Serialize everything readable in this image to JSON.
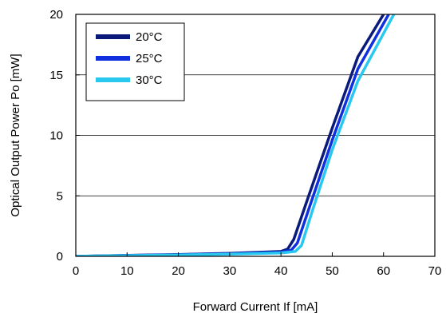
{
  "chart_data": {
    "type": "line",
    "title": "",
    "xlabel": "Forward Current If [mA]",
    "ylabel": "Optical Output Power  Po [mW]",
    "xlim": [
      0,
      70
    ],
    "ylim": [
      0,
      20
    ],
    "xticks": [
      0,
      10,
      20,
      30,
      40,
      50,
      60,
      70
    ],
    "yticks": [
      0,
      5,
      10,
      15,
      20
    ],
    "grid": "horizontal",
    "legend_position": "top-left",
    "series": [
      {
        "name": "20°C",
        "color": "#0a1a7a",
        "points": [
          [
            0,
            0
          ],
          [
            10,
            0.08
          ],
          [
            20,
            0.15
          ],
          [
            30,
            0.25
          ],
          [
            40,
            0.4
          ],
          [
            41.3,
            0.6
          ],
          [
            42.5,
            1.4
          ],
          [
            45,
            4.5
          ],
          [
            50,
            10.6
          ],
          [
            55,
            16.5
          ],
          [
            60,
            20
          ]
        ]
      },
      {
        "name": "25°C",
        "color": "#1030e0",
        "points": [
          [
            0,
            0
          ],
          [
            10,
            0.07
          ],
          [
            20,
            0.13
          ],
          [
            30,
            0.22
          ],
          [
            40,
            0.35
          ],
          [
            42,
            0.5
          ],
          [
            43.2,
            1.1
          ],
          [
            45.5,
            4.0
          ],
          [
            50,
            9.6
          ],
          [
            55,
            15.5
          ],
          [
            61,
            20
          ]
        ]
      },
      {
        "name": "30°C",
        "color": "#28c8f0",
        "points": [
          [
            0,
            0
          ],
          [
            10,
            0.06
          ],
          [
            20,
            0.11
          ],
          [
            30,
            0.18
          ],
          [
            40,
            0.28
          ],
          [
            42.8,
            0.4
          ],
          [
            44,
            0.9
          ],
          [
            46,
            3.6
          ],
          [
            50,
            8.8
          ],
          [
            55,
            14.5
          ],
          [
            62,
            20
          ]
        ]
      }
    ]
  }
}
